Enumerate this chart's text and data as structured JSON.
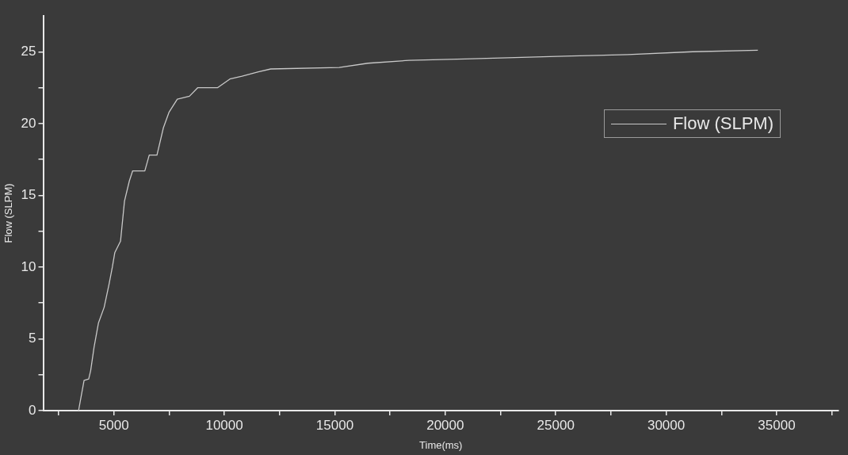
{
  "chart_data": {
    "type": "line",
    "xlabel": "Time(ms)",
    "ylabel": "Flow (SLPM)",
    "xlim": [
      1800,
      37800
    ],
    "ylim": [
      0,
      27.5
    ],
    "xticks": [
      {
        "value": 2500,
        "label": null
      },
      5000,
      {
        "value": 7500,
        "label": null
      },
      10000,
      {
        "value": 12500,
        "label": null
      },
      15000,
      {
        "value": 17500,
        "label": null
      },
      20000,
      {
        "value": 22500,
        "label": null
      },
      25000,
      {
        "value": 27500,
        "label": null
      },
      30000,
      {
        "value": 32500,
        "label": null
      },
      35000,
      {
        "value": 37500,
        "label": null
      }
    ],
    "yticks": [
      0,
      {
        "value": 2.5,
        "label": null
      },
      5,
      {
        "value": 7.5,
        "label": null
      },
      10,
      {
        "value": 12.5,
        "label": null
      },
      15,
      {
        "value": 17.5,
        "label": null
      },
      20,
      {
        "value": 22.5,
        "label": null
      },
      25
    ],
    "grid": false,
    "legend": "top right",
    "marker": "none",
    "line_style": "solid",
    "series": [
      {
        "name": "Flow (SLPM)",
        "color": "#c8c8c8",
        "x": [
          3400,
          3650,
          3860,
          3950,
          4100,
          4300,
          4560,
          4780,
          4930,
          5040,
          5300,
          5480,
          5700,
          5850,
          6400,
          6600,
          6950,
          7240,
          7500,
          7870,
          8420,
          8800,
          9700,
          10250,
          10800,
          11540,
          12100,
          15200,
          16500,
          18350,
          20900,
          25700,
          28270,
          31200,
          34150
        ],
        "values": [
          0,
          2.1,
          2.2,
          2.8,
          4.4,
          6.1,
          7.2,
          8.8,
          10,
          11,
          11.8,
          14.6,
          16,
          16.7,
          16.7,
          17.8,
          17.8,
          19.7,
          20.8,
          21.7,
          21.9,
          22.5,
          22.5,
          23.1,
          23.3,
          23.6,
          23.8,
          23.9,
          24.2,
          24.4,
          24.5,
          24.7,
          24.8,
          25,
          25.1
        ]
      }
    ]
  }
}
